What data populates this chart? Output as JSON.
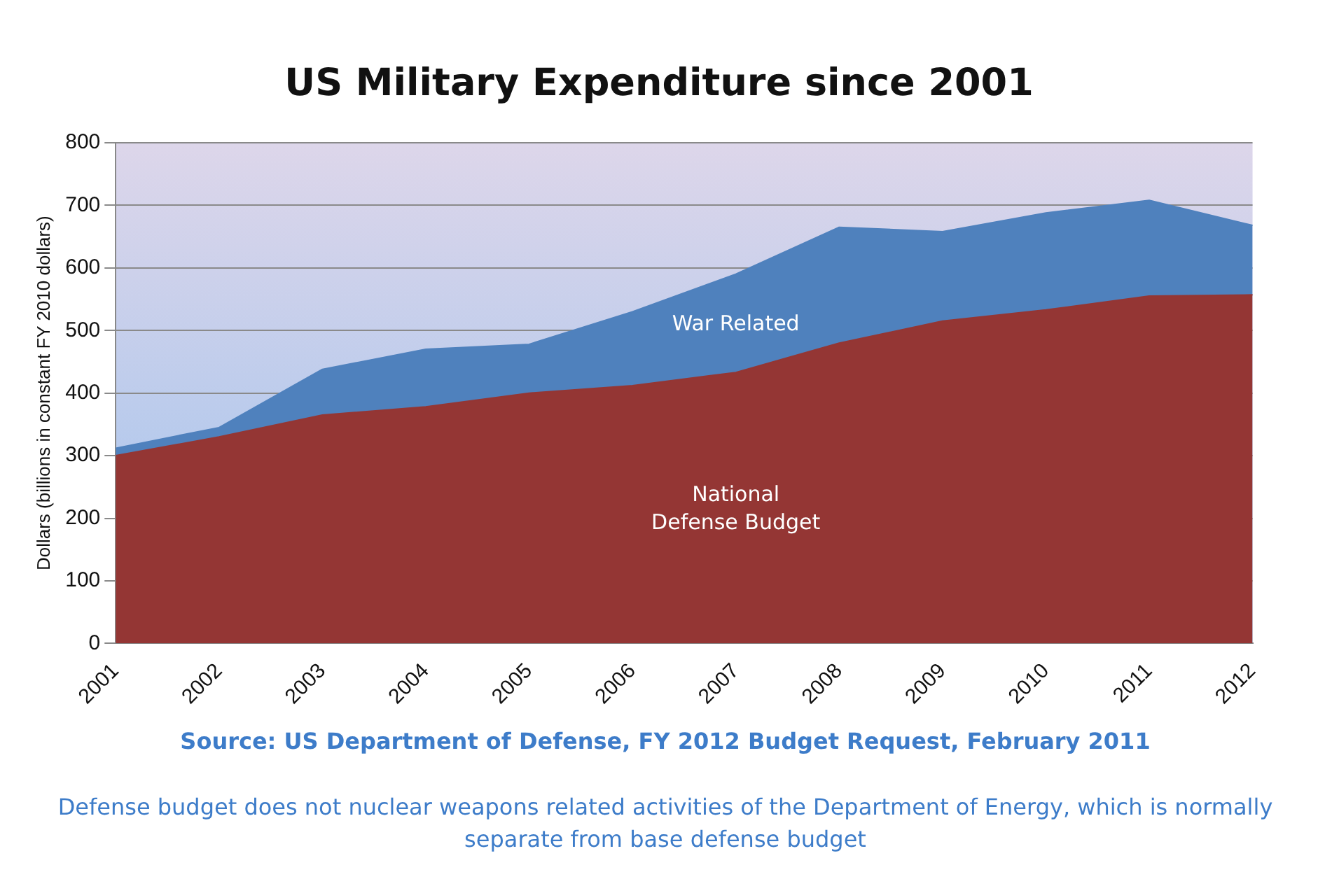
{
  "chart_data": {
    "type": "area",
    "title": "US Military Expenditure since 2001",
    "ylabel": "Dollars (billions in constant FY 2010 dollars)",
    "categories": [
      "2001",
      "2002",
      "2003",
      "2004",
      "2005",
      "2006",
      "2007",
      "2008",
      "2009",
      "2010",
      "2011",
      "2012"
    ],
    "stacked": true,
    "series": [
      {
        "name": "National Defense Budget",
        "color": "#943634",
        "values": [
          300,
          330,
          365,
          378,
          400,
          412,
          433,
          480,
          515,
          533,
          555,
          557
        ]
      },
      {
        "name": "War Related",
        "color": "#4f81bd",
        "values": [
          12,
          15,
          73,
          92,
          78,
          118,
          157,
          185,
          143,
          155,
          153,
          111
        ]
      }
    ],
    "ylim": [
      0,
      800
    ],
    "yticks": [
      0,
      100,
      200,
      300,
      400,
      500,
      600,
      700,
      800
    ],
    "grid": "y",
    "annotations": [
      "Source: US Department of Defense, FY 2012 Budget Request, February 2011",
      "Defense budget does not nuclear weapons related activities of the Department of Energy, which is normally separate from base defense budget"
    ]
  }
}
